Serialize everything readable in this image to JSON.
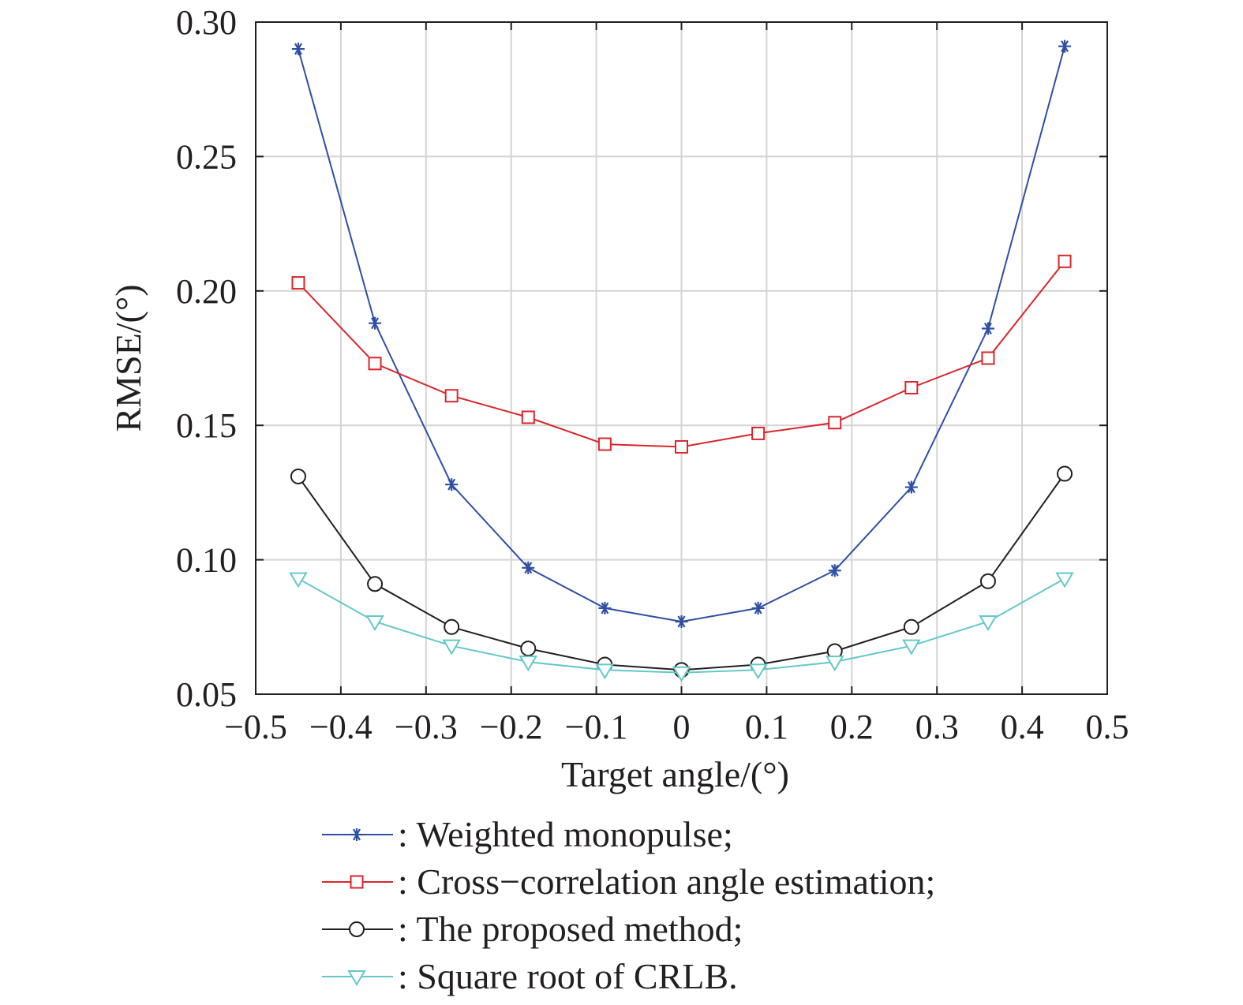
{
  "chart_data": {
    "type": "line",
    "xlabel": "Target angle/(°)",
    "ylabel": "RMSE/(°)",
    "xlim": [
      -0.5,
      0.5
    ],
    "ylim": [
      0.05,
      0.3
    ],
    "x_ticks": [
      "−0.5",
      "−0.4",
      "−0.3",
      "−0.2",
      "−0.1",
      "0",
      "0.1",
      "0.2",
      "0.3",
      "0.4",
      "0.5"
    ],
    "y_ticks": [
      "0.05",
      "0.10",
      "0.15",
      "0.20",
      "0.25",
      "0.30"
    ],
    "grid": true,
    "legend_position": "below",
    "x": [
      -0.45,
      -0.36,
      -0.27,
      -0.18,
      -0.09,
      0,
      0.09,
      0.18,
      0.27,
      0.36,
      0.45
    ],
    "series": [
      {
        "name": ": Weighted monopulse;",
        "color": "#2f4fa2",
        "marker": "star",
        "values": [
          0.29,
          0.188,
          0.128,
          0.097,
          0.082,
          0.077,
          0.082,
          0.096,
          0.127,
          0.186,
          0.291
        ]
      },
      {
        "name": ": Cross−correlation angle estimation;",
        "color": "#d9262b",
        "marker": "square",
        "values": [
          0.203,
          0.173,
          0.161,
          0.153,
          0.143,
          0.142,
          0.147,
          0.151,
          0.164,
          0.175,
          0.211
        ]
      },
      {
        "name": ": The proposed method;",
        "color": "#231f20",
        "marker": "circle",
        "values": [
          0.131,
          0.091,
          0.075,
          0.067,
          0.061,
          0.059,
          0.061,
          0.066,
          0.075,
          0.092,
          0.132
        ]
      },
      {
        "name": ": Square root of CRLB.",
        "color": "#64c8c8",
        "marker": "triangle-down",
        "values": [
          0.093,
          0.077,
          0.068,
          0.062,
          0.059,
          0.058,
          0.059,
          0.062,
          0.068,
          0.077,
          0.093
        ]
      }
    ]
  }
}
